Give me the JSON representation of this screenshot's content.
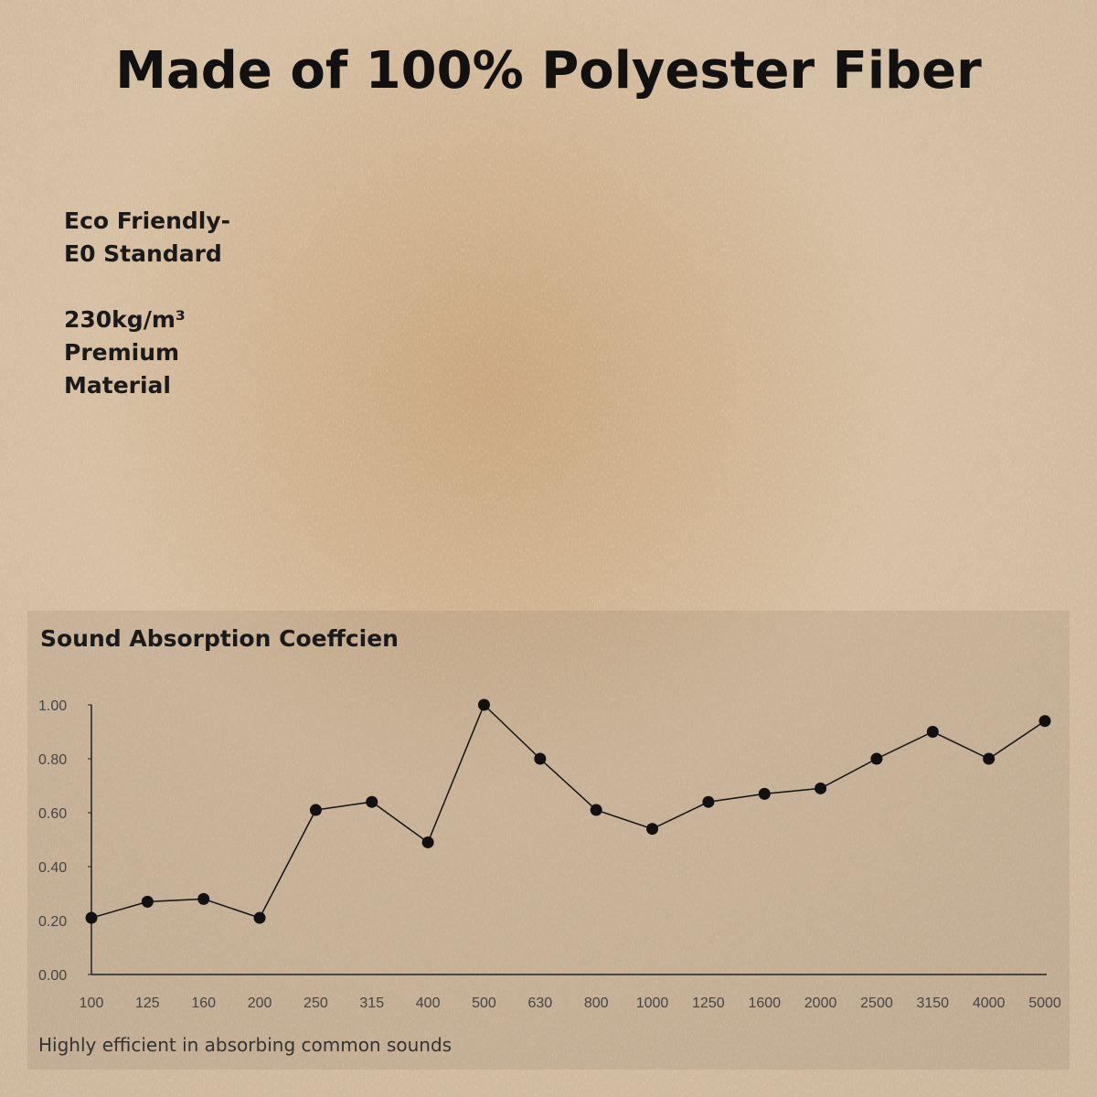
{
  "header": {
    "title": "Made of 100% Polyester Fiber"
  },
  "features": [
    {
      "lines": [
        "Eco Friendly-",
        "E0 Standard"
      ]
    },
    {
      "lines": [
        "230kg/m³",
        "Premium",
        "Material"
      ]
    }
  ],
  "chart_data": {
    "type": "line",
    "title": "Sound Absorption Coeffcien",
    "categories": [
      "100",
      "125",
      "160",
      "200",
      "250",
      "315",
      "400",
      "500",
      "630",
      "800",
      "1000",
      "1250",
      "1600",
      "2000",
      "2500",
      "3150",
      "4000",
      "5000"
    ],
    "values": [
      0.21,
      0.27,
      0.28,
      0.21,
      0.61,
      0.64,
      0.49,
      1.0,
      0.8,
      0.61,
      0.54,
      0.64,
      0.67,
      0.69,
      0.8,
      0.9,
      0.8,
      0.94
    ],
    "color": "#111111",
    "ylim": [
      0,
      1
    ],
    "yticks": [
      {
        "value": 0,
        "label": "0.00"
      },
      {
        "value": 0.2,
        "label": "0.20"
      },
      {
        "value": 0.4,
        "label": "0.40"
      },
      {
        "value": 0.6,
        "label": "0.60"
      },
      {
        "value": 0.8,
        "label": "0.80"
      },
      {
        "value": 1,
        "label": "1.00"
      }
    ],
    "caption": "Highly efficient in absorbing common sounds"
  }
}
